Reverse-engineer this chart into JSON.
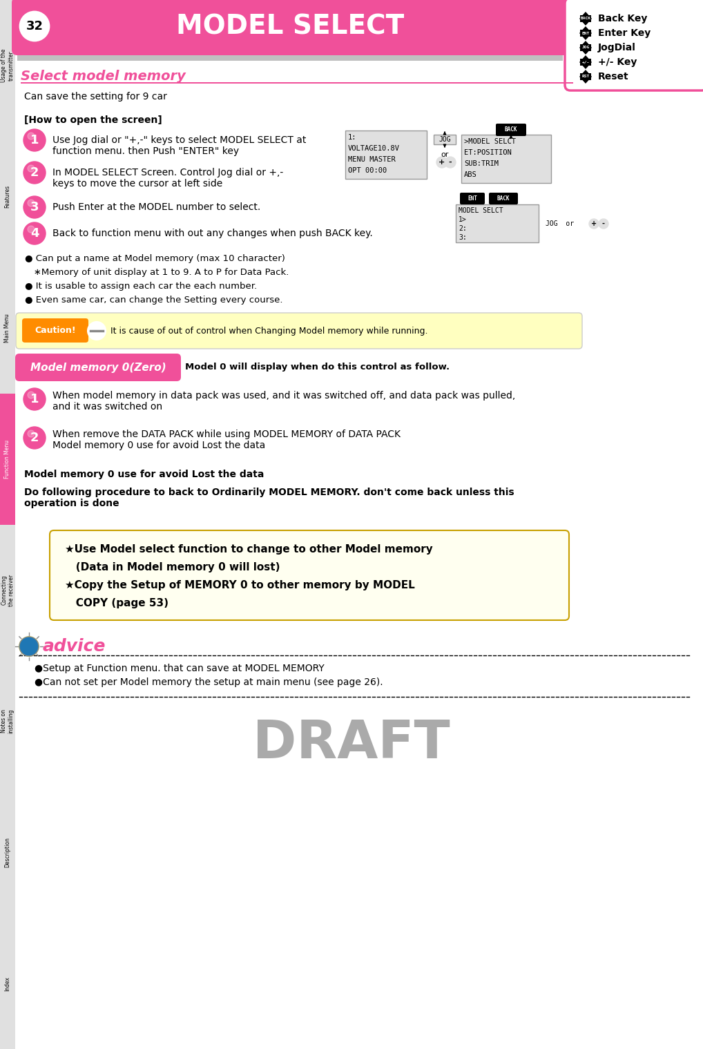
{
  "title": "MODEL SELECT",
  "page_num": "32",
  "pink": "#F0509A",
  "gray_bg": "#C0C0C0",
  "light_gray": "#E0E0E0",
  "black": "#000000",
  "white": "#FFFFFF",
  "caution_yellow": "#FFFFC0",
  "caution_border": "#CCCCCC",
  "caution_orange": "#FF8C00",
  "star_box_bg": "#FFFFF0",
  "star_box_border": "#C8A000",
  "section1_title": "Select model memory",
  "section1_subtitle": "Can save the setting for 9 car",
  "how_to_open": "[How to open the screen]",
  "step1": "Use Jog dial or \"+,-\" keys to select MODEL SELECT at\nfunction menu. then Push \"ENTER\" key",
  "step2": "In MODEL SELECT Screen. Control Jog dial or +,-\nkeys to move the cursor at left side",
  "step3": "Push Enter at the MODEL number to select.",
  "step4": "Back to function menu with out any changes when push BACK key.",
  "bullet1": "● Can put a name at Model memory (max 10 character)",
  "bullet2": "   ∗Memory of unit display at 1 to 9. A to P for Data Pack.",
  "bullet3": "● It is usable to assign each car the each number.",
  "bullet4": "● Even same car, can change the Setting every course.",
  "caution_text": "It is cause of out of control when Changing Model memory while running.",
  "section2_title": "Model memory 0(Zero)",
  "section2_note": "Model 0 will display when do this control as follow.",
  "step2_1": "When model memory in data pack was used, and it was switched off, and data pack was pulled,\nand it was switched on",
  "step2_2": "When remove the DATA PACK while using MODEL MEMORY of DATA PACK\nModel memory 0 use for avoid Lost the data",
  "bold_text": "Model memory 0 use for avoid Lost the data",
  "do_following": "Do following procedure to back to Ordinarily MODEL MEMORY. don't come back unless this\noperation is done",
  "star_line1": "★Use Model select function to change to other Model memory",
  "star_line2": "   (Data in Model memory 0 will lost)",
  "star_line3": "★Copy the Setup of MEMORY 0 to other memory by MODEL",
  "star_line4": "   COPY (page 53)",
  "advice_text": "advice",
  "advice_b1": "●Setup at Function menu. that can save at MODEL MEMORY",
  "advice_b2": "●Can not set per Model memory the setup at main menu (see page 26).",
  "draft_text": "DRAFT",
  "screen1": [
    "1:",
    "VOLTAGE10.8V",
    "MENU MASTER",
    "OPT 00:00"
  ],
  "screen2": [
    ">MODEL SELCT",
    "ET:POSITION",
    "SUB:TRIM",
    "ABS"
  ],
  "screen3": [
    "MODEL SELCT",
    "1>",
    "2:",
    "3:"
  ],
  "sidebar": [
    {
      "label": "Usage of the\ntransmitter",
      "active": false
    },
    {
      "label": "Features",
      "active": false
    },
    {
      "label": "Main Menu",
      "active": false
    },
    {
      "label": "Function Menu",
      "active": true
    },
    {
      "label": "Connecting\nthe receiver",
      "active": false
    },
    {
      "label": "Notes on\ninstalling",
      "active": false
    },
    {
      "label": "Description",
      "active": false
    },
    {
      "label": "Index",
      "active": false
    }
  ],
  "key_items": [
    {
      "icon": "BACK",
      "label": "Back Key"
    },
    {
      "icon": "ENT",
      "label": "Enter Key"
    },
    {
      "icon": "JOG",
      "label": "JogDial"
    },
    {
      "icon": "+-",
      "label": "+/- Key"
    },
    {
      "icon": "RST",
      "label": "Reset"
    }
  ]
}
